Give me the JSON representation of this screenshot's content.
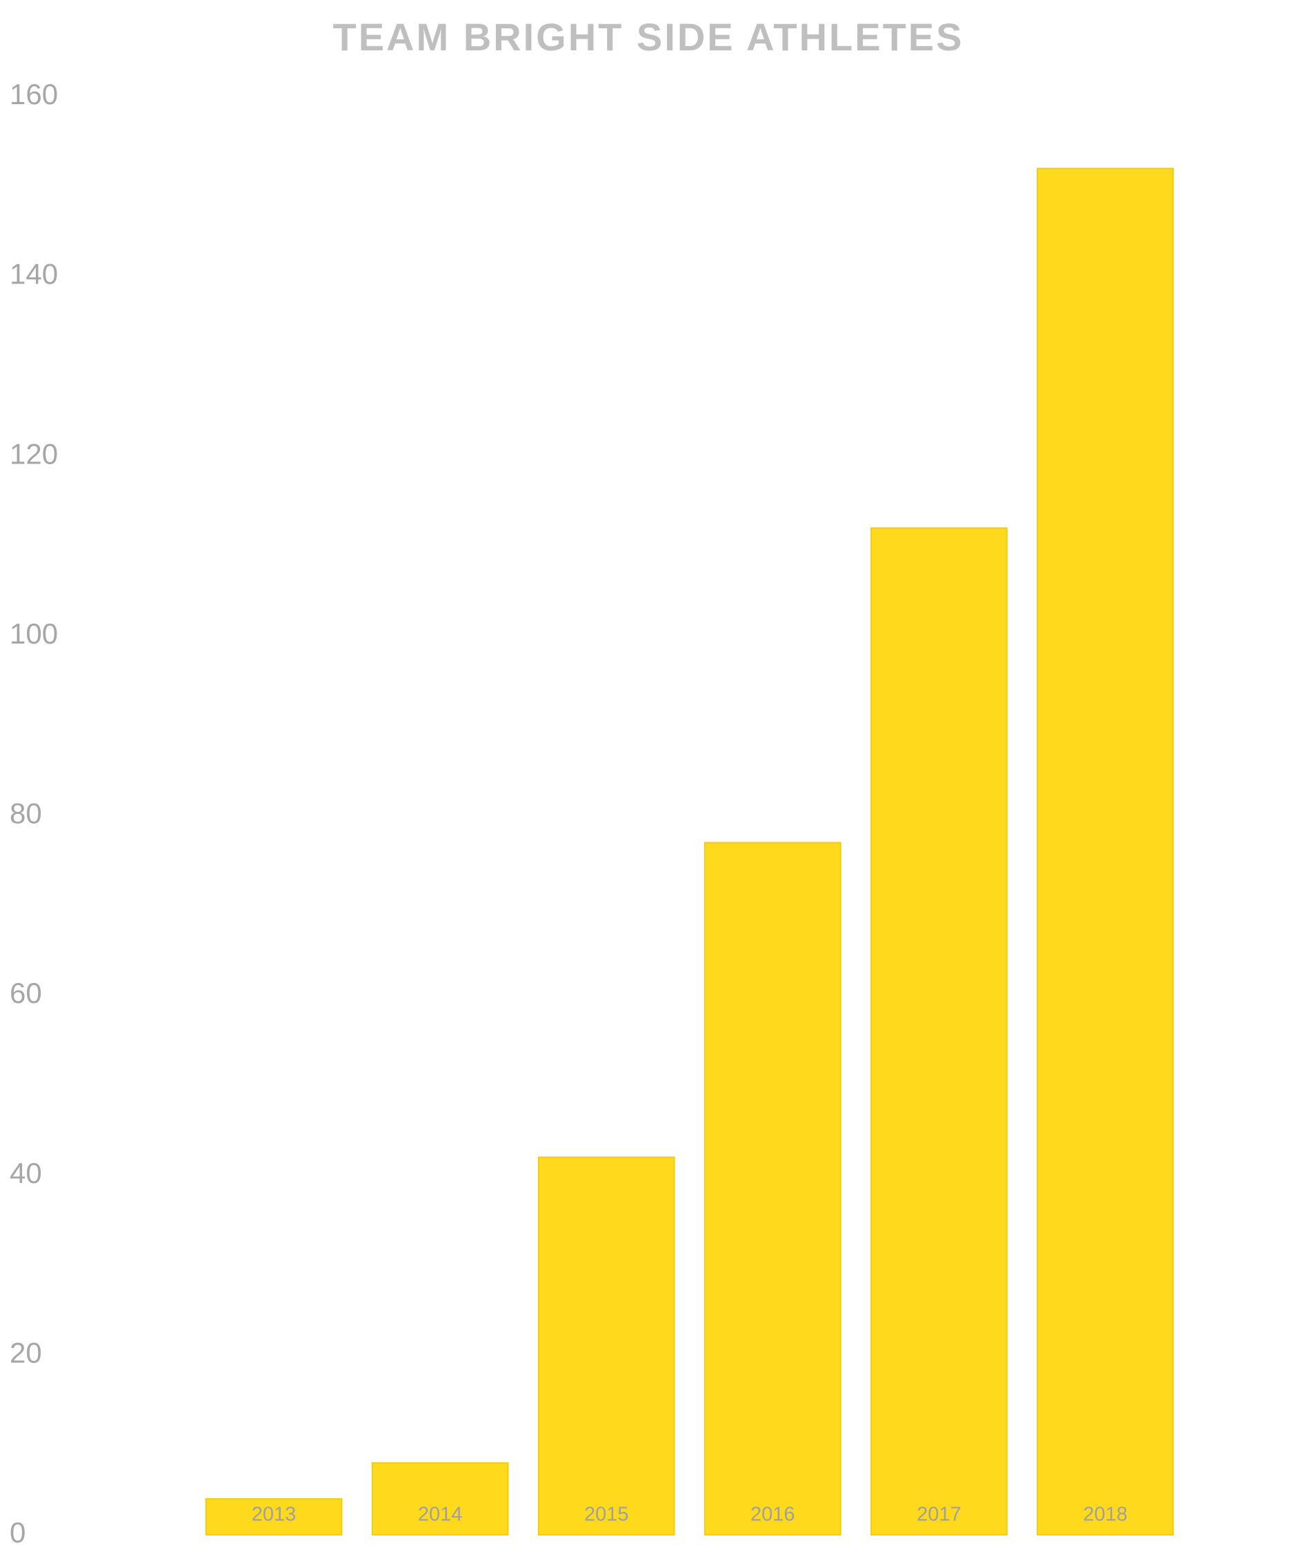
{
  "chart_data": {
    "type": "bar",
    "title": "TEAM BRIGHT SIDE ATHLETES",
    "categories": [
      "2013",
      "2014",
      "2015",
      "2016",
      "2017",
      "2018"
    ],
    "values": [
      4,
      8,
      42,
      77,
      112,
      152
    ],
    "color": "#fed91c",
    "ylim": [
      0,
      160
    ],
    "yticks": [
      0,
      20,
      40,
      60,
      80,
      100,
      120,
      140,
      160
    ],
    "grid": false
  }
}
